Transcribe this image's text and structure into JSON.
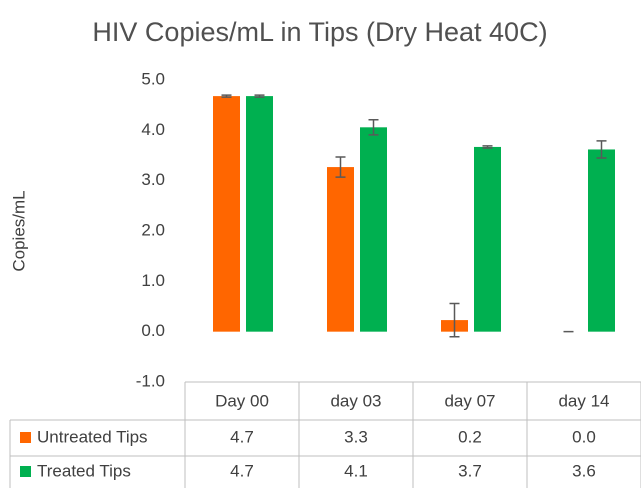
{
  "chart_data": {
    "type": "bar",
    "title": "HIV Copies/mL in Tips (Dry Heat 40C)",
    "y_label": "Copies/mL",
    "categories": [
      "Day 00",
      "day 03",
      "day 07",
      "day 14"
    ],
    "series": [
      {
        "name": "Untreated Tips",
        "color": "#ff6600",
        "values": [
          4.68,
          3.27,
          0.23,
          0
        ],
        "value_labels": [
          "4.7",
          "3.3",
          "0.2",
          "0.0"
        ],
        "errors": [
          0.02,
          0.2,
          0.33,
          0
        ]
      },
      {
        "name": "Treated Tips",
        "color": "#00b050",
        "values": [
          4.68,
          4.06,
          3.67,
          3.62
        ],
        "value_labels": [
          "4.7",
          "4.1",
          "3.7",
          "3.6"
        ],
        "errors": [
          0.02,
          0.15,
          0.02,
          0.17
        ]
      }
    ],
    "ylim": [
      -1,
      5
    ],
    "yticks": [
      {
        "value": -1,
        "label": "-1.0"
      },
      {
        "value": 0,
        "label": "0.0"
      },
      {
        "value": 1,
        "label": "1.0"
      },
      {
        "value": 2,
        "label": "2.0"
      },
      {
        "value": 3,
        "label": "3.0"
      },
      {
        "value": 4,
        "label": "4.0"
      },
      {
        "value": 5,
        "label": "5.0"
      }
    ],
    "grid": false
  }
}
